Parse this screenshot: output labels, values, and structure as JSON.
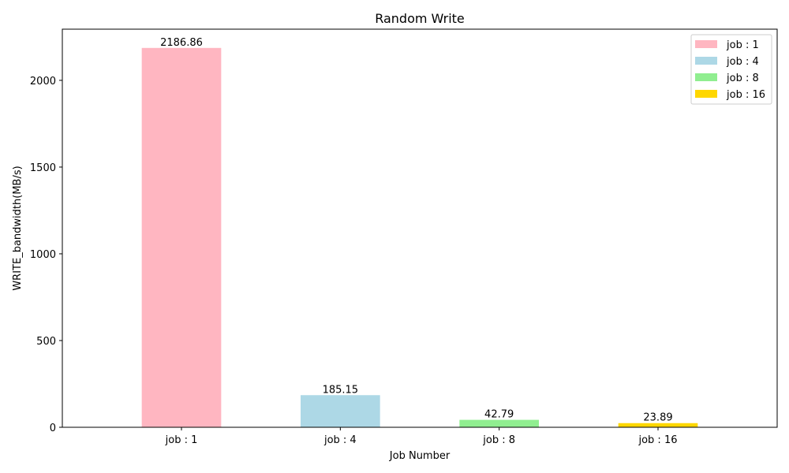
{
  "chart_data": {
    "type": "bar",
    "title": "Random Write",
    "xlabel": "Job Number",
    "ylabel": "WRITE_bandwidth(MB/s)",
    "categories": [
      "job : 1",
      "job : 4",
      "job : 8",
      "job : 16"
    ],
    "values": [
      2186.86,
      185.15,
      42.79,
      23.89
    ],
    "value_labels": [
      "2186.86",
      "185.15",
      "42.79",
      "23.89"
    ],
    "colors": [
      "#ffb6c1",
      "#add8e6",
      "#90ee90",
      "#ffd700"
    ],
    "ylim": [
      0,
      2295
    ],
    "yticks": [
      0,
      500,
      1000,
      1500,
      2000
    ],
    "ytick_labels": [
      "0",
      "500",
      "1000",
      "1500",
      "2000"
    ],
    "legend": {
      "position": "top-right",
      "entries": [
        "job : 1",
        "job : 4",
        "job : 8",
        "job : 16"
      ]
    },
    "grid": false
  }
}
